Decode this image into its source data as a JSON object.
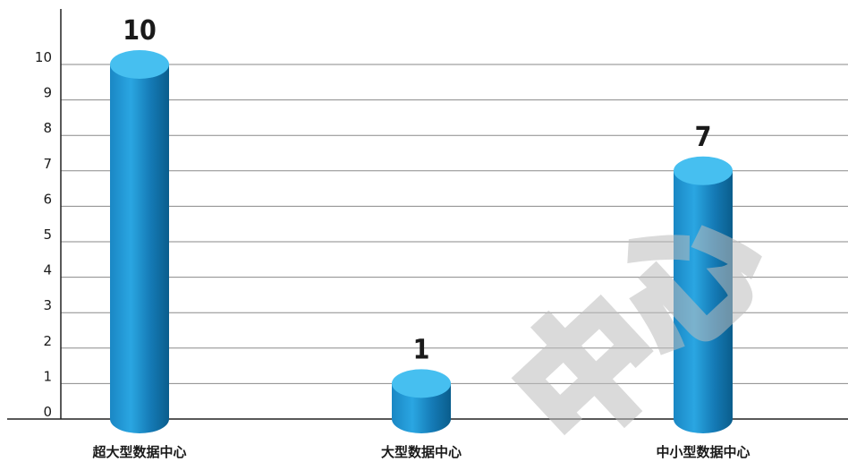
{
  "chart_data": {
    "type": "bar",
    "categories": [
      "超大型数据中心",
      "大型数据中心",
      "中小型数据中心"
    ],
    "values": [
      10,
      1,
      7
    ],
    "data_labels": [
      "10",
      "1",
      "7"
    ],
    "yticks": [
      "0",
      "1",
      "2",
      "3",
      "4",
      "5",
      "6",
      "7",
      "8",
      "9",
      "10"
    ],
    "ylim": [
      0,
      10
    ],
    "grid": true,
    "bar_style": "3d-cylinder",
    "colors": {
      "bar_light": "#5ec3ee",
      "bar_mid": "#1893d0",
      "bar_dark": "#0a5d8c",
      "bar_top": "#46bff0",
      "grid": "#8a8a8a",
      "axis": "#222222"
    }
  },
  "watermark": "中心"
}
